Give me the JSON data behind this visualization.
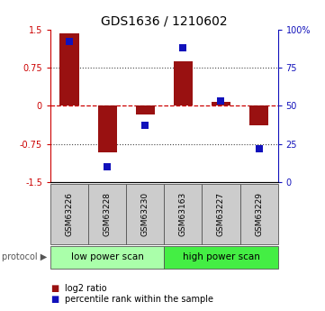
{
  "title": "GDS1636 / 1210602",
  "samples": [
    "GSM63226",
    "GSM63228",
    "GSM63230",
    "GSM63163",
    "GSM63227",
    "GSM63229"
  ],
  "log2_ratio": [
    1.42,
    -0.92,
    -0.18,
    0.88,
    0.08,
    -0.38
  ],
  "percentile_rank": [
    92,
    10,
    37,
    88,
    53,
    22
  ],
  "groups": [
    {
      "label": "low power scan",
      "samples": [
        0,
        1,
        2
      ],
      "color": "#aaffaa"
    },
    {
      "label": "high power scan",
      "samples": [
        3,
        4,
        5
      ],
      "color": "#44ee44"
    }
  ],
  "bar_color": "#991111",
  "dot_color": "#1111bb",
  "ylim": [
    -1.5,
    1.5
  ],
  "yticks_left": [
    -1.5,
    -0.75,
    0,
    0.75,
    1.5
  ],
  "yticks_right": [
    0,
    25,
    50,
    75,
    100
  ],
  "hlines": [
    -0.75,
    0.0,
    0.75
  ],
  "zero_color": "#cc0000",
  "dot_color_label": "#1111bb",
  "sample_bg_color": "#cccccc",
  "bar_width": 0.5,
  "dot_size": 40
}
